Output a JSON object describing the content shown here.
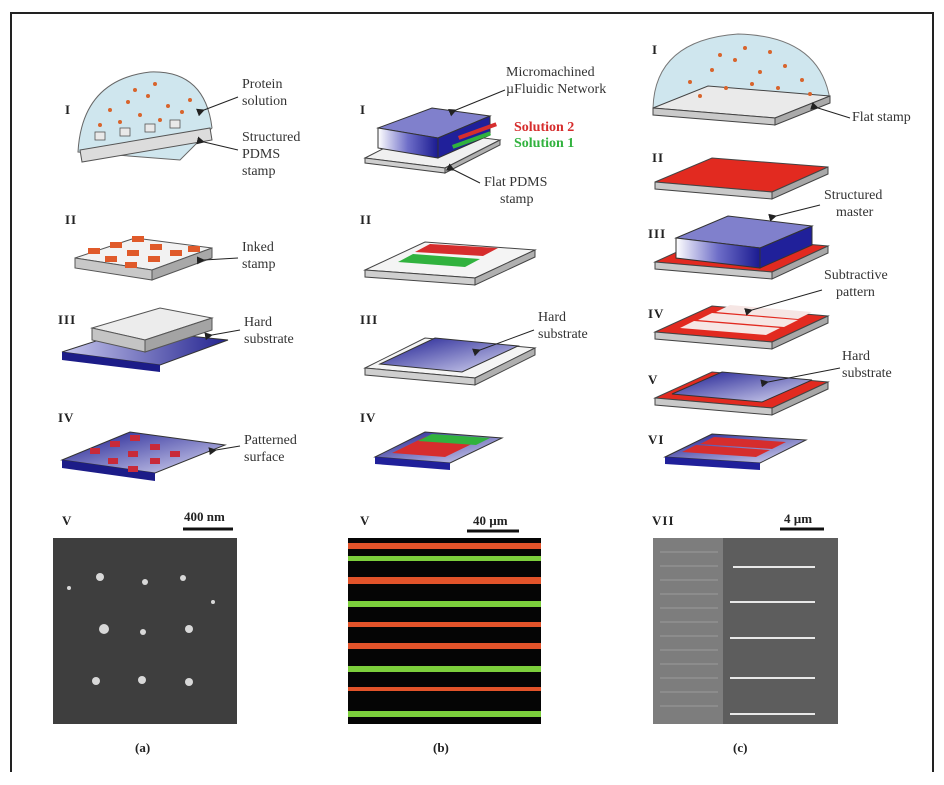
{
  "panel_a": {
    "steps": [
      "I",
      "II",
      "III",
      "IV",
      "V"
    ],
    "labels": {
      "protein_solution": [
        "Protein",
        "solution"
      ],
      "structured_pdms_stamp": [
        "Structured",
        "PDMS",
        "stamp"
      ],
      "inked_stamp": [
        "Inked",
        "stamp"
      ],
      "hard_substrate": [
        "Hard",
        "substrate"
      ],
      "patterned_surface": [
        "Patterned",
        "surface"
      ]
    },
    "scale_bar": "400 nm",
    "caption": "(a)"
  },
  "panel_b": {
    "steps": [
      "I",
      "II",
      "III",
      "IV",
      "V"
    ],
    "labels": {
      "network": [
        "Micromachined",
        "µFluidic Network"
      ],
      "solution_2": "Solution 2",
      "solution_1": "Solution 1",
      "flat_pdms_stamp": [
        "Flat PDMS",
        "stamp"
      ],
      "hard_substrate": [
        "Hard",
        "substrate"
      ]
    },
    "scale_bar": "40 µm",
    "caption": "(b)"
  },
  "panel_c": {
    "steps": [
      "I",
      "II",
      "III",
      "IV",
      "V",
      "VI",
      "VII"
    ],
    "labels": {
      "flat_stamp": "Flat stamp",
      "structured_master": [
        "Structured",
        "master"
      ],
      "subtractive_pattern": [
        "Subtractive",
        "pattern"
      ],
      "hard_substrate": [
        "Hard",
        "substrate"
      ]
    },
    "scale_bar": "4 µm",
    "caption": "(c)"
  },
  "colors": {
    "stamp_gray": "#d9d9d9",
    "substrate_blue": "#2a2a9a",
    "ink_red": "#e23a2a",
    "solution_green": "#2fb34a",
    "solution_fill": "#cfe6ee"
  }
}
